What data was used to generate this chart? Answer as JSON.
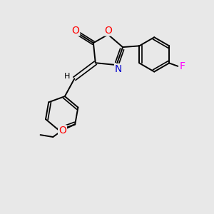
{
  "background_color": "#e8e8e8",
  "bond_color": "#000000",
  "atom_colors": {
    "O": "#ff0000",
    "N": "#0000cd",
    "F": "#ff00ff",
    "C": "#000000",
    "H": "#000000"
  },
  "figsize": [
    3.0,
    3.0
  ],
  "dpi": 100
}
